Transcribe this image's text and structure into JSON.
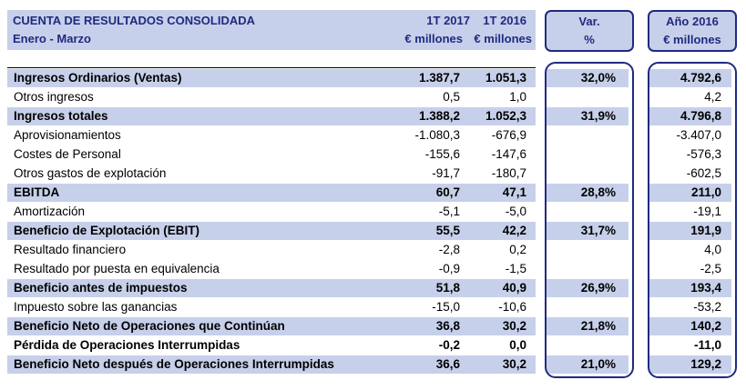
{
  "header": {
    "title": "CUENTA DE RESULTADOS CONSOLIDADA",
    "subtitle": "Enero - Marzo",
    "col_q17": "1T 2017",
    "col_q16": "1T 2016",
    "col_unit": "€ millones",
    "col_var": "Var.",
    "col_var_unit": "%",
    "col_year": "Año 2016",
    "col_year_unit": "€ millones"
  },
  "rows": [
    {
      "label": "Ingresos Ordinarios (Ventas)",
      "q17": "1.387,7",
      "q16": "1.051,3",
      "var": "32,0%",
      "year": "4.792,6"
    },
    {
      "label": "Otros ingresos",
      "q17": "0,5",
      "q16": "1,0",
      "var": "",
      "year": "4,2"
    },
    {
      "label": "Ingresos totales",
      "q17": "1.388,2",
      "q16": "1.052,3",
      "var": "31,9%",
      "year": "4.796,8"
    },
    {
      "label": "Aprovisionamientos",
      "q17": "-1.080,3",
      "q16": "-676,9",
      "var": "",
      "year": "-3.407,0"
    },
    {
      "label": "Costes de Personal",
      "q17": "-155,6",
      "q16": "-147,6",
      "var": "",
      "year": "-576,3"
    },
    {
      "label": "Otros gastos de explotación",
      "q17": "-91,7",
      "q16": "-180,7",
      "var": "",
      "year": "-602,5"
    },
    {
      "label": "EBITDA",
      "q17": "60,7",
      "q16": "47,1",
      "var": "28,8%",
      "year": "211,0"
    },
    {
      "label": "Amortización",
      "q17": "-5,1",
      "q16": "-5,0",
      "var": "",
      "year": "-19,1"
    },
    {
      "label": "Beneficio de Explotación (EBIT)",
      "q17": "55,5",
      "q16": "42,2",
      "var": "31,7%",
      "year": "191,9"
    },
    {
      "label": "Resultado financiero",
      "q17": "-2,8",
      "q16": "0,2",
      "var": "",
      "year": "4,0"
    },
    {
      "label": "Resultado por puesta en equivalencia",
      "q17": "-0,9",
      "q16": "-1,5",
      "var": "",
      "year": "-2,5"
    },
    {
      "label": "Beneficio antes de impuestos",
      "q17": "51,8",
      "q16": "40,9",
      "var": "26,9%",
      "year": "193,4"
    },
    {
      "label": "Impuesto sobre las ganancias",
      "q17": "-15,0",
      "q16": "-10,6",
      "var": "",
      "year": "-53,2"
    },
    {
      "label": "Beneficio Neto de Operaciones que Continúan",
      "q17": "36,8",
      "q16": "30,2",
      "var": "21,8%",
      "year": "140,2"
    },
    {
      "label": "Pérdida de Operaciones Interrumpidas",
      "q17": "-0,2",
      "q16": "0,0",
      "var": "",
      "year": "-11,0"
    },
    {
      "label": "Beneficio Neto después de Operaciones Interrumpidas",
      "q17": "36,6",
      "q16": "30,2",
      "var": "21,0%",
      "year": "129,2"
    }
  ]
}
